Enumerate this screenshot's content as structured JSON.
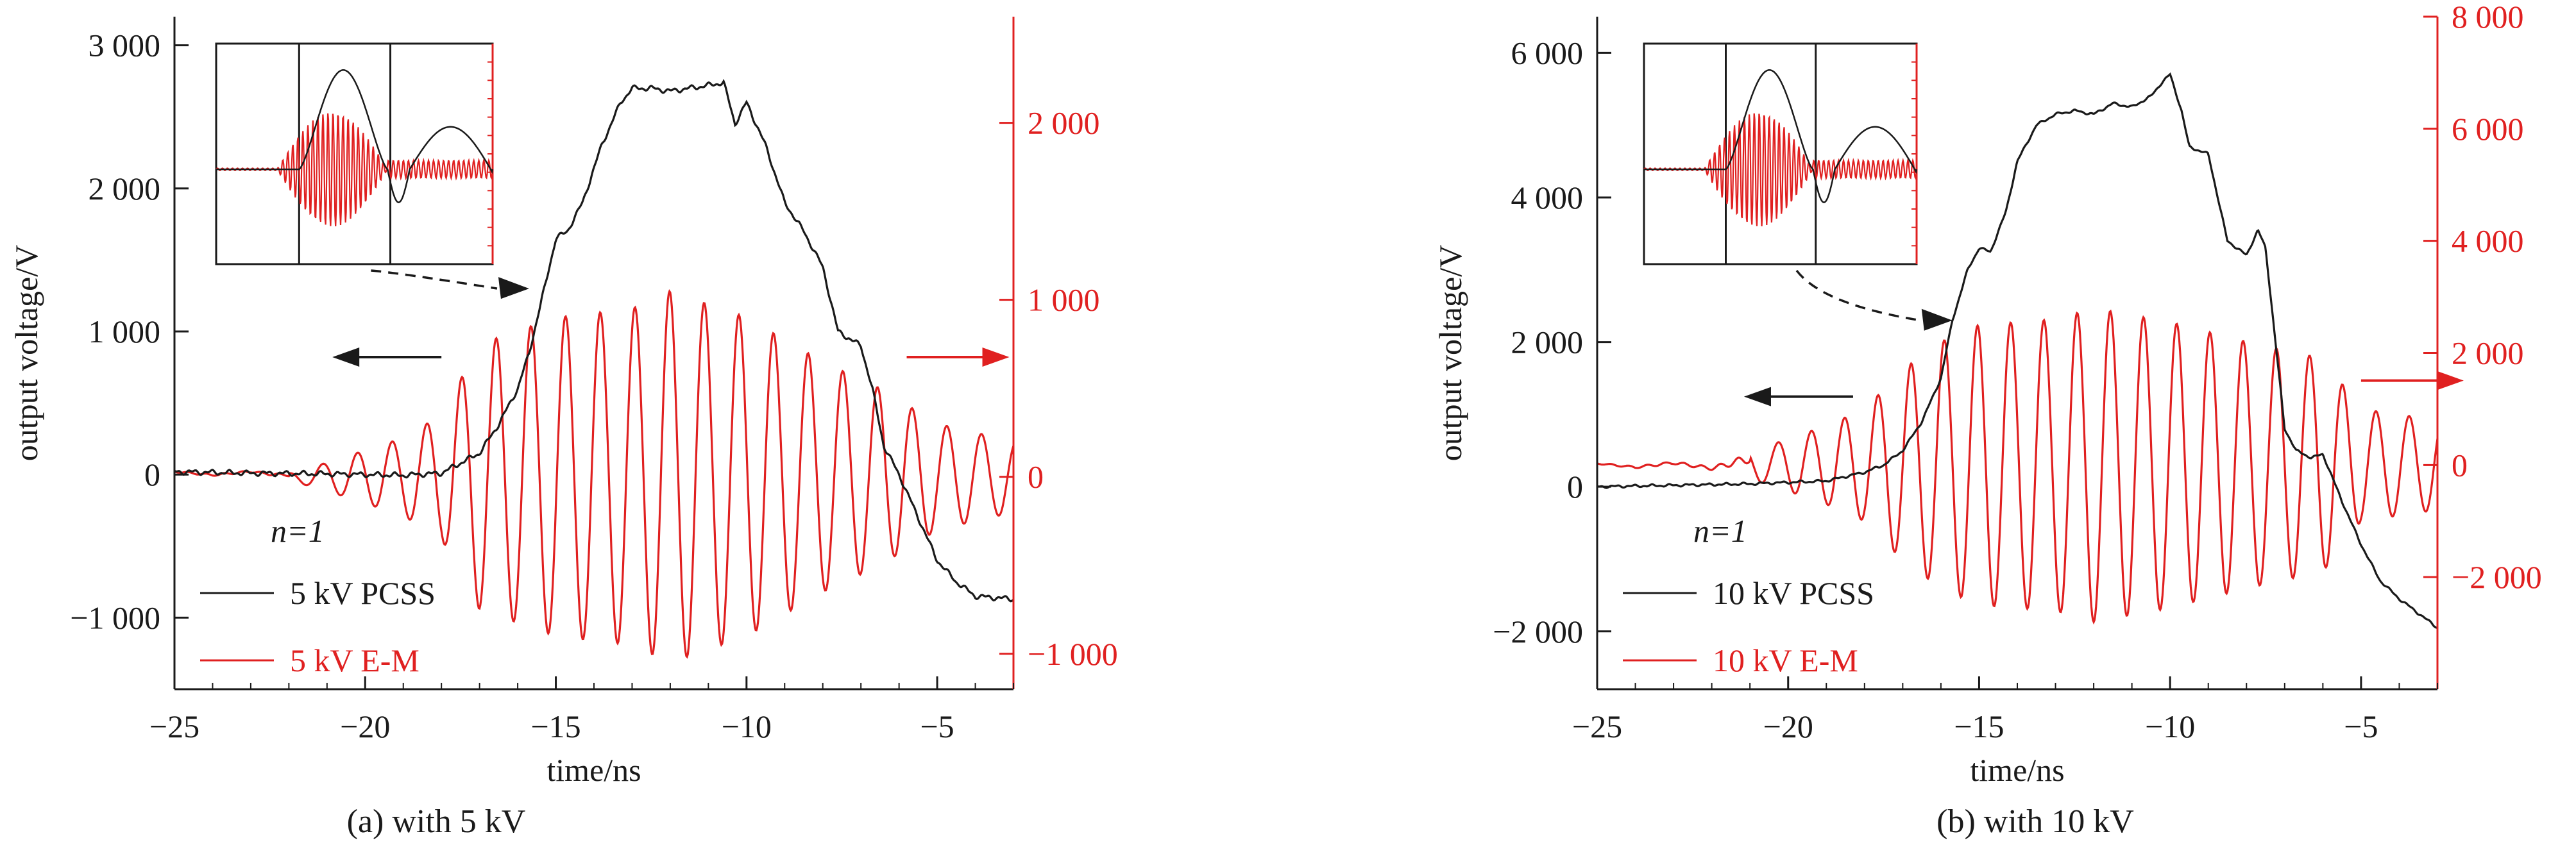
{
  "colors": {
    "pcss": "#1a1a1a",
    "em": "#e02020"
  },
  "chart_data": [
    {
      "type": "line",
      "caption": "(a) with 5 kV",
      "xlabel": "time/ns",
      "ylabel_left": "output voltage/V",
      "ylabel_right": "",
      "xlim": [
        -25,
        -3
      ],
      "ylim_left": [
        -1500,
        3200
      ],
      "ylim_right": [
        -1200,
        2600
      ],
      "x_ticks": [
        -25,
        -20,
        -15,
        -10,
        -5
      ],
      "x_tick_labels": [
        "−25",
        "−20",
        "−15",
        "−10",
        "−5"
      ],
      "y_left_ticks": [
        -1000,
        0,
        1000,
        2000,
        3000
      ],
      "y_left_tick_labels": [
        "−1 000",
        "0",
        "1 000",
        "2 000",
        "3 000"
      ],
      "y_right_ticks": [
        -1000,
        0,
        1000,
        2000
      ],
      "y_right_tick_labels": [
        "−1 000",
        "0",
        "1 000",
        "2 000"
      ],
      "legend": {
        "n_label": "n=1",
        "pcss_label": "5 kV PCSS",
        "em_label": "5 kV E-M"
      },
      "series": [
        {
          "name": "5 kV PCSS",
          "axis": "left",
          "color": "#1a1a1a",
          "points": [
            [
              -25,
              20
            ],
            [
              -23,
              10
            ],
            [
              -21,
              5
            ],
            [
              -19,
              -5
            ],
            [
              -18,
              10
            ],
            [
              -17.5,
              80
            ],
            [
              -17,
              150
            ],
            [
              -16.5,
              350
            ],
            [
              -16,
              600
            ],
            [
              -15.7,
              850
            ],
            [
              -15.3,
              1300
            ],
            [
              -15,
              1650
            ],
            [
              -14.7,
              1700
            ],
            [
              -14.3,
              1900
            ],
            [
              -13.8,
              2300
            ],
            [
              -13.3,
              2600
            ],
            [
              -13,
              2700
            ],
            [
              -12.5,
              2700
            ],
            [
              -12,
              2680
            ],
            [
              -11.5,
              2700
            ],
            [
              -11,
              2720
            ],
            [
              -10.6,
              2740
            ],
            [
              -10.3,
              2450
            ],
            [
              -10,
              2600
            ],
            [
              -9.5,
              2300
            ],
            [
              -9,
              1900
            ],
            [
              -8.5,
              1700
            ],
            [
              -8,
              1450
            ],
            [
              -7.6,
              1000
            ],
            [
              -7.3,
              950
            ],
            [
              -7,
              900
            ],
            [
              -6.7,
              600
            ],
            [
              -6.4,
              200
            ],
            [
              -6,
              0
            ],
            [
              -5.5,
              -300
            ],
            [
              -5,
              -600
            ],
            [
              -4.5,
              -750
            ],
            [
              -4,
              -850
            ],
            [
              -3.5,
              -860
            ],
            [
              -3,
              -870
            ]
          ]
        },
        {
          "name": "5 kV E-M",
          "axis": "right",
          "color": "#e02020",
          "t0": -17.7,
          "f_ghz": 1.1,
          "envelope": [
            [
              -25,
              15
            ],
            [
              -22,
              20
            ],
            [
              -21,
              80
            ],
            [
              -20,
              150
            ],
            [
              -19,
              220
            ],
            [
              -18,
              350
            ],
            [
              -17,
              750
            ],
            [
              -15,
              900
            ],
            [
              -13,
              950
            ],
            [
              -12,
              1050
            ],
            [
              -10,
              900
            ],
            [
              -8,
              650
            ],
            [
              -6.5,
              500
            ],
            [
              -5,
              300
            ],
            [
              -3,
              200
            ]
          ],
          "pre_noise": [
            [
              -25,
              30
            ],
            [
              -24,
              10
            ],
            [
              -23,
              30
            ],
            [
              -22.5,
              15
            ],
            [
              -22,
              10
            ]
          ]
        }
      ],
      "inset": {
        "type": "line",
        "divider_count": 2
      },
      "annotations": [
        "arrow-left-pcss-axis",
        "arrow-right-em-axis",
        "dashed-zoom-arrow"
      ]
    },
    {
      "type": "line",
      "caption": "(b) with 10 kV",
      "xlabel": "time/ns",
      "ylabel_left": "output voltage/V",
      "ylabel_right": "",
      "xlim": [
        -25,
        -3
      ],
      "ylim_left": [
        -2800,
        6500
      ],
      "ylim_right": [
        -4000,
        8000
      ],
      "x_ticks": [
        -25,
        -20,
        -15,
        -10,
        -5
      ],
      "x_tick_labels": [
        "−25",
        "−20",
        "−15",
        "−10",
        "−5"
      ],
      "y_left_ticks": [
        -2000,
        0,
        2000,
        4000,
        6000
      ],
      "y_left_tick_labels": [
        "−2 000",
        "0",
        "2 000",
        "4 000",
        "6 000"
      ],
      "y_right_ticks": [
        -2000,
        0,
        2000,
        4000,
        6000,
        8000
      ],
      "y_right_tick_labels": [
        "−2 000",
        "0",
        "2 000",
        "4 000",
        "6 000",
        "8 000"
      ],
      "legend": {
        "n_label": "n=1",
        "pcss_label": "10 kV PCSS",
        "em_label": "10 kV E-M"
      },
      "series": [
        {
          "name": "10 kV PCSS",
          "axis": "left",
          "color": "#1a1a1a",
          "points": [
            [
              -25,
              0
            ],
            [
              -23,
              20
            ],
            [
              -21,
              40
            ],
            [
              -19,
              80
            ],
            [
              -18,
              200
            ],
            [
              -17.5,
              300
            ],
            [
              -17,
              500
            ],
            [
              -16.5,
              900
            ],
            [
              -16,
              1500
            ],
            [
              -15.7,
              2300
            ],
            [
              -15.3,
              3000
            ],
            [
              -15,
              3300
            ],
            [
              -14.7,
              3250
            ],
            [
              -14.3,
              3800
            ],
            [
              -14,
              4500
            ],
            [
              -13.5,
              5000
            ],
            [
              -13,
              5150
            ],
            [
              -12.5,
              5200
            ],
            [
              -12,
              5150
            ],
            [
              -11.5,
              5300
            ],
            [
              -11,
              5250
            ],
            [
              -10.5,
              5400
            ],
            [
              -10.2,
              5600
            ],
            [
              -10,
              5700
            ],
            [
              -9.7,
              5200
            ],
            [
              -9.5,
              4700
            ],
            [
              -9,
              4600
            ],
            [
              -8.5,
              3400
            ],
            [
              -8,
              3200
            ],
            [
              -7.7,
              3550
            ],
            [
              -7.5,
              3300
            ],
            [
              -7.2,
              1800
            ],
            [
              -7,
              800
            ],
            [
              -6.7,
              500
            ],
            [
              -6.3,
              400
            ],
            [
              -6,
              450
            ],
            [
              -5.5,
              -200
            ],
            [
              -5,
              -800
            ],
            [
              -4.5,
              -1300
            ],
            [
              -4,
              -1550
            ],
            [
              -3.5,
              -1750
            ],
            [
              -3,
              -1950
            ]
          ]
        },
        {
          "name": "10 kV E-M",
          "axis": "right",
          "color": "#e02020",
          "t0": -17.0,
          "f_ghz": 1.15,
          "envelope": [
            [
              -25,
              40
            ],
            [
              -22,
              100
            ],
            [
              -20.5,
              350
            ],
            [
              -19,
              700
            ],
            [
              -18,
              1000
            ],
            [
              -17,
              1700
            ],
            [
              -16,
              2200
            ],
            [
              -15,
              2500
            ],
            [
              -13,
              2600
            ],
            [
              -12,
              2800
            ],
            [
              -10,
              2550
            ],
            [
              -8,
              2200
            ],
            [
              -6,
              1900
            ],
            [
              -5,
              1000
            ],
            [
              -3,
              800
            ]
          ],
          "pre_noise": [
            [
              -25,
              30
            ],
            [
              -24,
              -40
            ],
            [
              -23,
              40
            ],
            [
              -22,
              -60
            ],
            [
              -21,
              120
            ]
          ]
        }
      ],
      "inset": {
        "type": "line",
        "divider_count": 2
      },
      "annotations": [
        "arrow-left-pcss-axis",
        "arrow-right-em-axis",
        "dashed-zoom-arrow"
      ]
    }
  ]
}
